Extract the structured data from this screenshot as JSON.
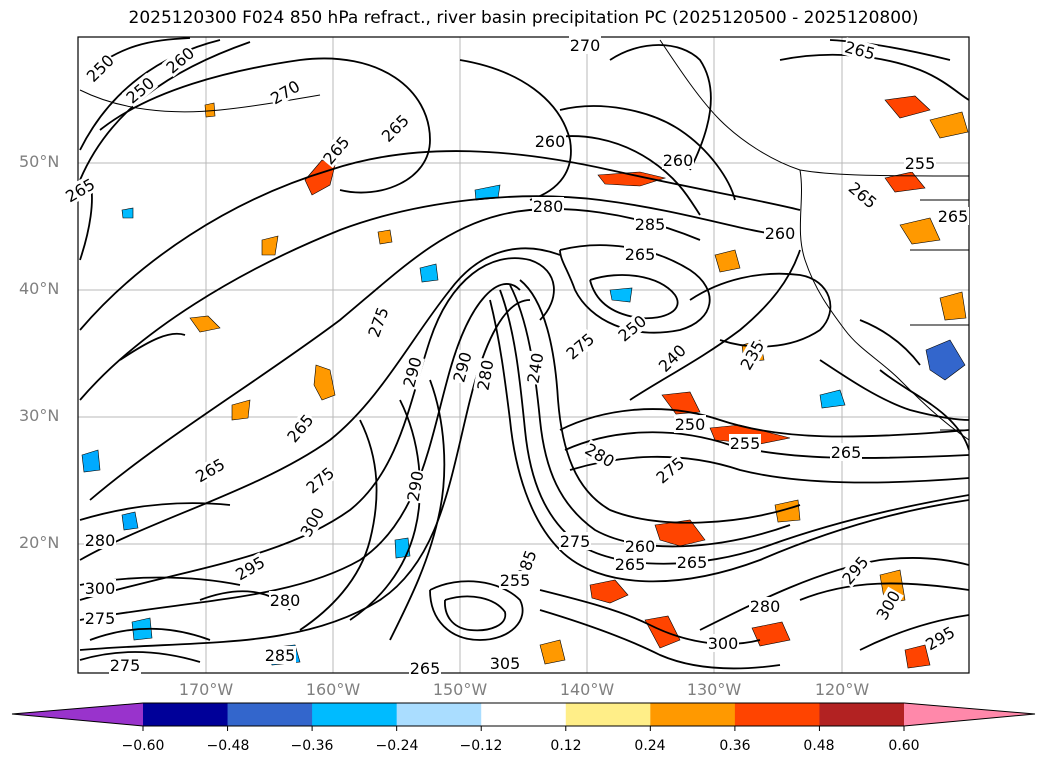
{
  "title": "2025120300 F024 850 hPa refract., river basin precipitation PC (2025120500 - 2025120800)",
  "lat_labels": [
    "50°N",
    "40°N",
    "30°N",
    "20°N"
  ],
  "lon_labels": [
    "170°W",
    "160°W",
    "150°W",
    "140°W",
    "130°W",
    "120°W"
  ],
  "contour_labels": [
    "250",
    "250",
    "260",
    "265",
    "265",
    "265",
    "270",
    "270",
    "265",
    "260",
    "255",
    "260",
    "265",
    "265",
    "280",
    "285",
    "265",
    "260",
    "275",
    "290",
    "290",
    "280",
    "240",
    "275",
    "250",
    "240",
    "235",
    "250",
    "265",
    "280",
    "275",
    "255",
    "265",
    "265",
    "275",
    "300",
    "280",
    "295",
    "290",
    "260",
    "265",
    "285",
    "275",
    "255",
    "265",
    "295",
    "300",
    "280",
    "295",
    "300",
    "265",
    "305",
    "285",
    "275",
    "280",
    "275",
    "300"
  ],
  "colorbar": {
    "tick_labels": [
      "−0.60",
      "−0.48",
      "−0.36",
      "−0.24",
      "−0.12",
      "0.12",
      "0.24",
      "0.36",
      "0.48",
      "0.60"
    ],
    "colors": {
      "under": "#9933cc",
      "bins": [
        "#000099",
        "#3366cc",
        "#00bbff",
        "#aaddff",
        "#ffffff",
        "#ffee88",
        "#ff9900",
        "#ff4400",
        "#b22222"
      ],
      "over": "#ff88aa"
    }
  },
  "fill_colors": {
    "orange": "#ff9900",
    "red": "#ff4400",
    "blue": "#00aaff",
    "darkblue": "#3366cc"
  }
}
